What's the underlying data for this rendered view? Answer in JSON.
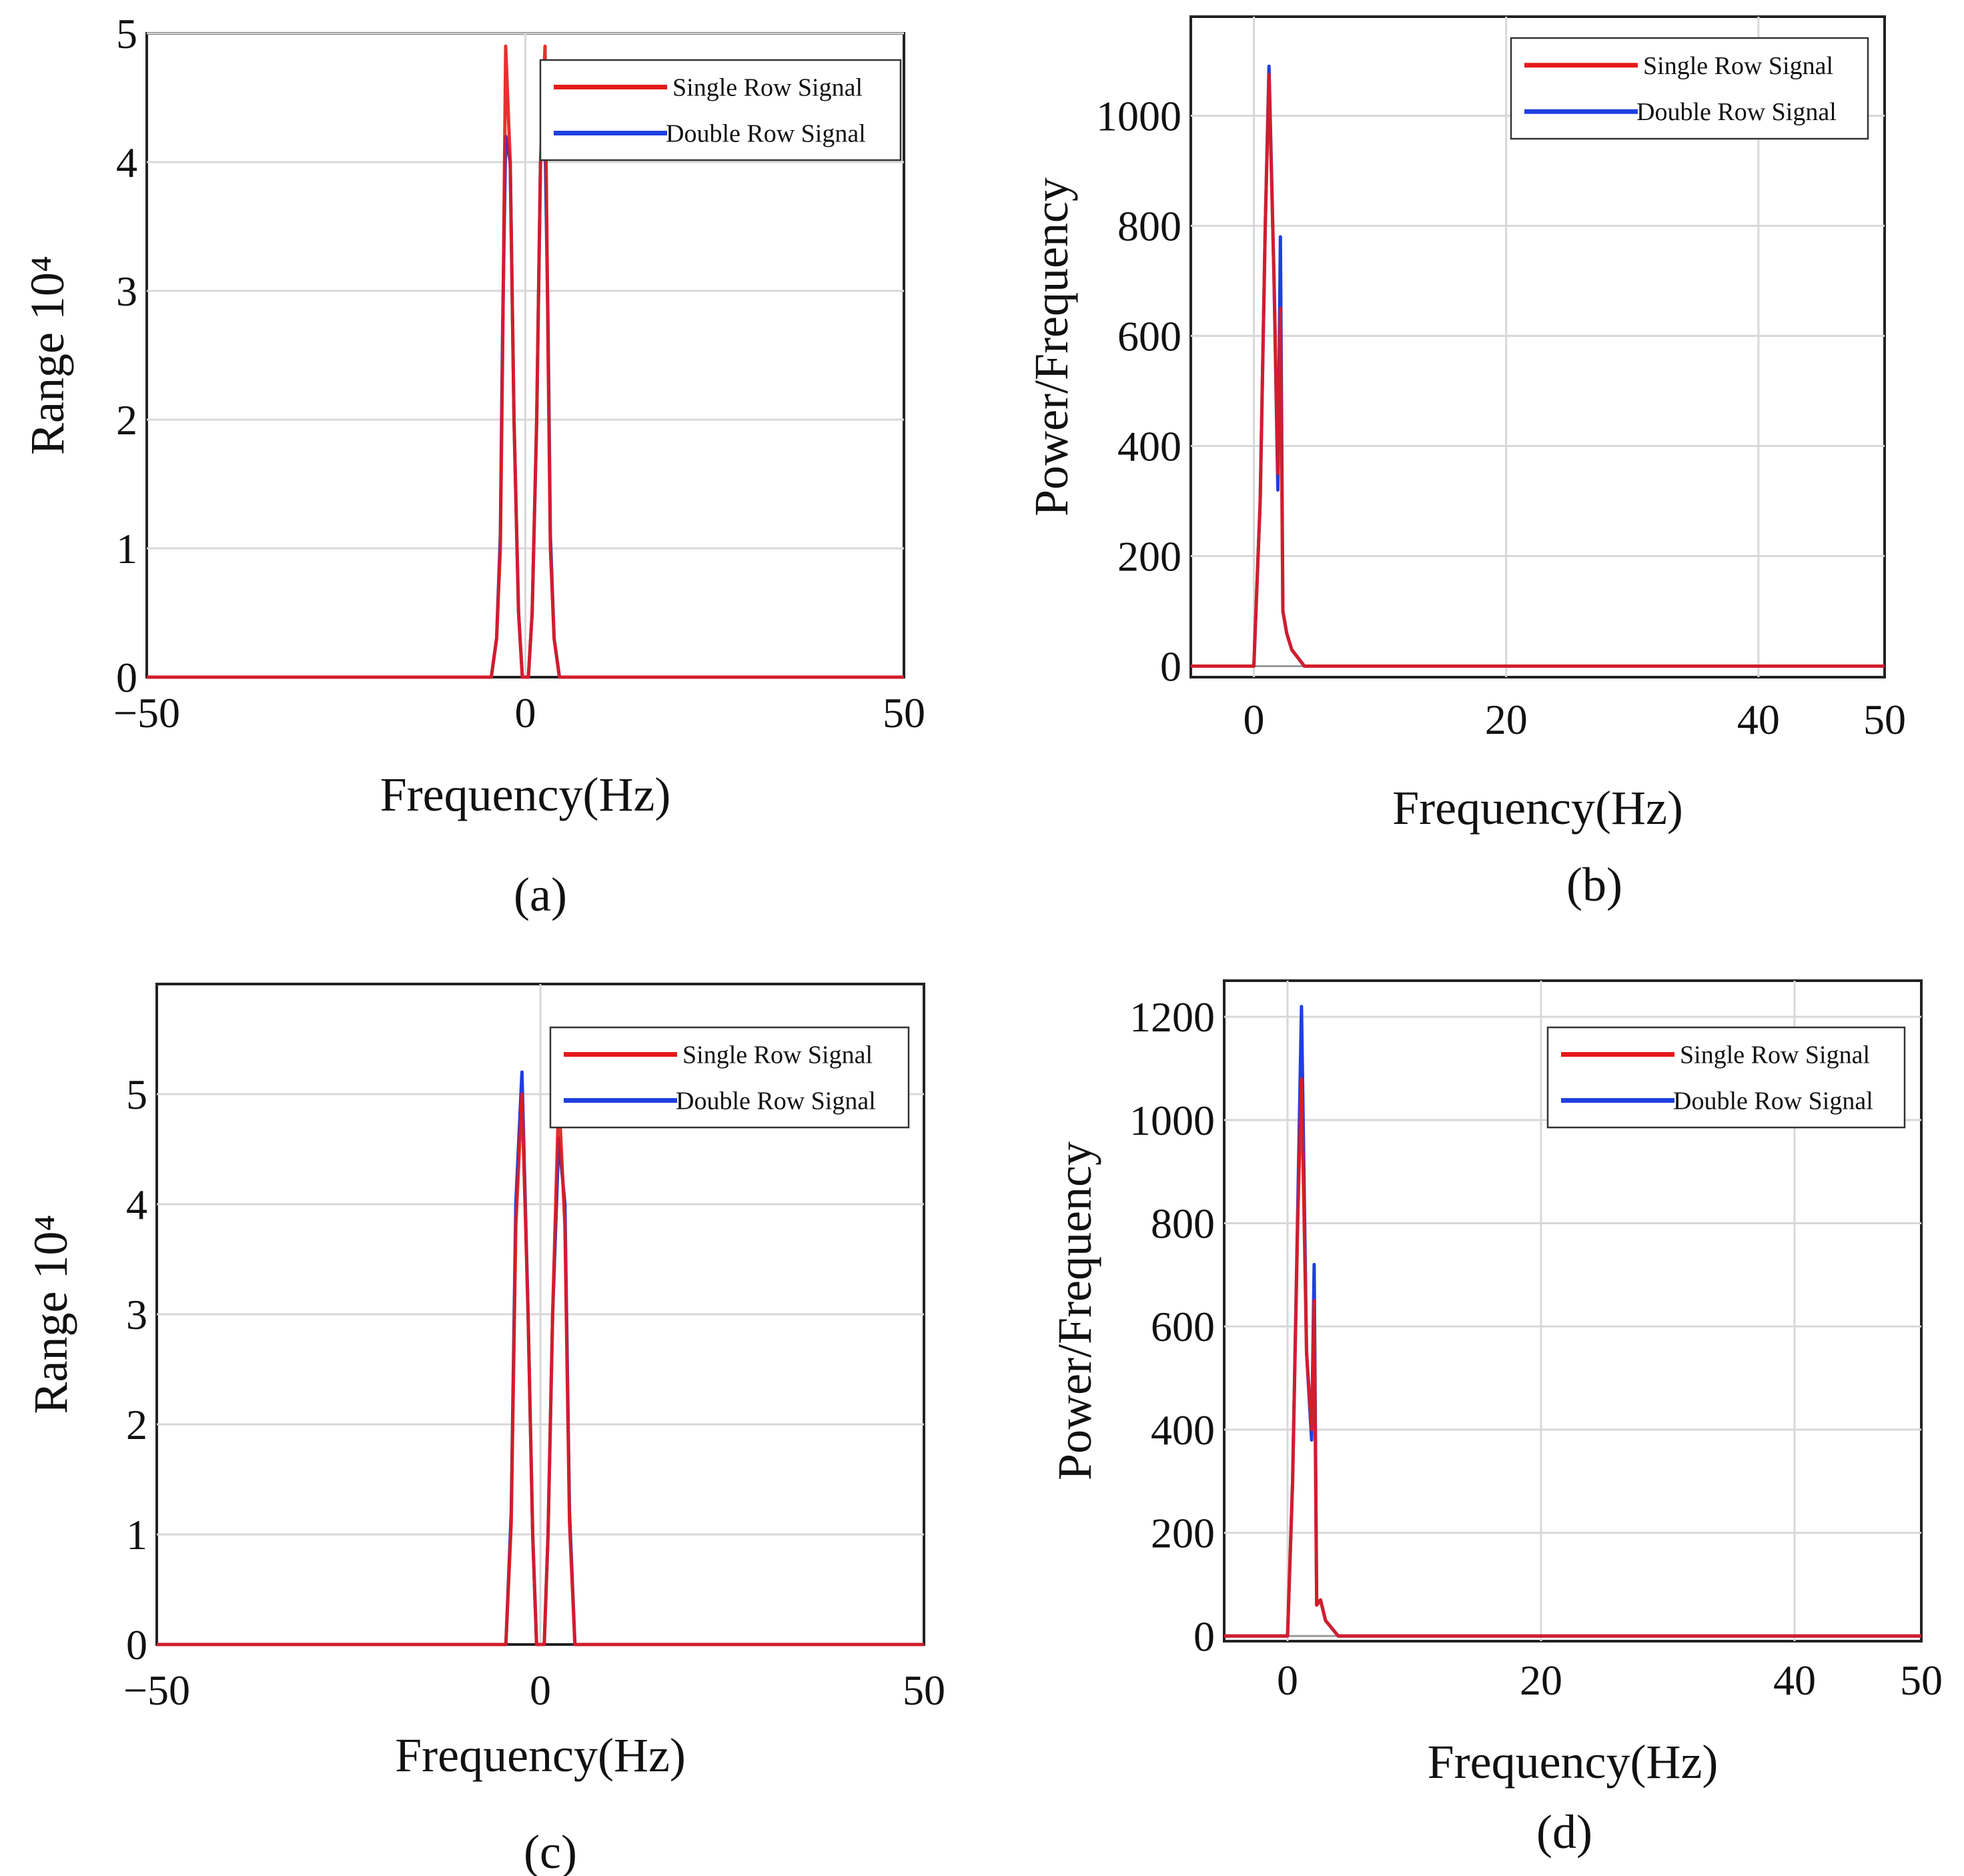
{
  "chart_data": [
    {
      "panel": "a",
      "type": "line",
      "caption": "(a)",
      "xlabel": "Frequency(Hz)",
      "ylabel": "Range 10⁴",
      "xlim": [
        -50,
        50
      ],
      "ylim": [
        0,
        5
      ],
      "xticks": [
        -50,
        0,
        50
      ],
      "yticks": [
        0,
        1,
        2,
        3,
        4,
        5
      ],
      "xtick_labels": [
        "−50",
        "0",
        "50"
      ],
      "ytick_labels": [
        "0",
        "1",
        "2",
        "3",
        "4",
        "5"
      ],
      "legend": {
        "position": "top-right",
        "entries": [
          "Single Row Signal",
          "Double  Row Signal"
        ]
      },
      "series": [
        {
          "name": "Single Row Signal",
          "color": "#e51a1a",
          "x": [
            -50,
            -4.5,
            -3.8,
            -3.3,
            -3.0,
            -2.6,
            -2.0,
            -1.5,
            -0.9,
            -0.4,
            0.4,
            0.9,
            1.5,
            2.0,
            2.6,
            3.0,
            3.3,
            3.8,
            4.5,
            50
          ],
          "y": [
            0,
            0,
            0.3,
            1.0,
            2.5,
            4.9,
            4.0,
            2.0,
            0.5,
            0,
            0,
            0.5,
            2.0,
            4.0,
            4.9,
            2.5,
            1.0,
            0.3,
            0,
            0
          ]
        },
        {
          "name": "Double  Row Signal",
          "color": "#1f3fe0",
          "x": [
            -50,
            -4.5,
            -3.8,
            -3.3,
            -3.0,
            -2.6,
            -2.0,
            -1.5,
            -0.9,
            -0.4,
            0.4,
            0.9,
            1.5,
            2.0,
            2.6,
            3.0,
            3.3,
            3.8,
            4.5,
            50
          ],
          "y": [
            0,
            0,
            0.3,
            1.1,
            2.7,
            4.2,
            4.0,
            2.0,
            0.5,
            0,
            0,
            0.5,
            2.0,
            4.0,
            4.2,
            2.7,
            1.1,
            0.3,
            0,
            0
          ]
        }
      ]
    },
    {
      "panel": "b",
      "type": "line",
      "caption": "(b)",
      "xlabel": "Frequency(Hz)",
      "ylabel": "Power/Frequency",
      "xlim": [
        -5,
        50
      ],
      "ylim": [
        -20,
        1180
      ],
      "xticks": [
        0,
        20,
        40,
        50
      ],
      "yticks": [
        0,
        200,
        400,
        600,
        800,
        1000
      ],
      "xtick_labels": [
        "0",
        "20",
        "40",
        "50"
      ],
      "ytick_labels": [
        "0",
        "200",
        "400",
        "600",
        "800",
        "1000"
      ],
      "legend": {
        "position": "top-right",
        "entries": [
          "Single Row Signal",
          "Double  Row Signal"
        ]
      },
      "series": [
        {
          "name": "Single Row Signal",
          "color": "#e51a1a",
          "x": [
            -5,
            0,
            0.5,
            0.9,
            1.2,
            1.6,
            1.9,
            2.1,
            2.3,
            2.6,
            3.0,
            4.0,
            50
          ],
          "y": [
            0,
            0,
            300,
            800,
            1075,
            700,
            350,
            650,
            100,
            60,
            30,
            0,
            0
          ]
        },
        {
          "name": "Double  Row Signal",
          "color": "#1f3fe0",
          "x": [
            -5,
            0,
            0.5,
            0.9,
            1.2,
            1.6,
            1.9,
            2.1,
            2.3,
            2.6,
            3.0,
            4.0,
            50
          ],
          "y": [
            0,
            0,
            300,
            800,
            1090,
            700,
            320,
            780,
            100,
            60,
            30,
            0,
            0
          ]
        }
      ]
    },
    {
      "panel": "c",
      "type": "line",
      "caption": "(c)",
      "xlabel": "Frequency(Hz)",
      "ylabel": "Range 10⁴",
      "xlim": [
        -50,
        50
      ],
      "ylim": [
        0,
        6
      ],
      "xticks": [
        -50,
        0,
        50
      ],
      "yticks": [
        0,
        1,
        2,
        3,
        4,
        5
      ],
      "xtick_labels": [
        "−50",
        "0",
        "50"
      ],
      "ytick_labels": [
        "0",
        "1",
        "2",
        "3",
        "4",
        "5"
      ],
      "legend": {
        "position": "top-right",
        "entries": [
          "Single Row Signal",
          "Double  Row Signal"
        ]
      },
      "series": [
        {
          "name": "Single Row Signal",
          "color": "#e51a1a",
          "x": [
            -50,
            -4.5,
            -3.8,
            -3.2,
            -2.4,
            -1.6,
            -1.0,
            -0.5,
            0,
            0.5,
            1.0,
            1.6,
            2.4,
            3.2,
            3.8,
            4.5,
            50
          ],
          "y": [
            0,
            0,
            1.1,
            3.8,
            5.0,
            3.0,
            1.0,
            0,
            0,
            0,
            1.0,
            3.0,
            5.0,
            3.8,
            1.1,
            0,
            0
          ]
        },
        {
          "name": "Double  Row Signal",
          "color": "#1f3fe0",
          "x": [
            -50,
            -4.5,
            -3.8,
            -3.2,
            -2.4,
            -1.6,
            -1.0,
            -0.5,
            0,
            0.5,
            1.0,
            1.6,
            2.4,
            3.2,
            3.8,
            4.5,
            50
          ],
          "y": [
            0,
            0,
            1.2,
            4.0,
            5.2,
            3.0,
            1.0,
            0,
            0,
            0,
            1.0,
            3.0,
            4.6,
            4.0,
            1.2,
            0,
            0
          ]
        }
      ]
    },
    {
      "panel": "d",
      "type": "line",
      "caption": "(d)",
      "xlabel": "Frequency(Hz)",
      "ylabel": "Power/Frequency",
      "xlim": [
        -5,
        50
      ],
      "ylim": [
        -10,
        1270
      ],
      "xticks": [
        0,
        20,
        40,
        50
      ],
      "yticks": [
        0,
        200,
        400,
        600,
        800,
        1000,
        1200
      ],
      "xtick_labels": [
        "0",
        "20",
        "40",
        "50"
      ],
      "ytick_labels": [
        "0",
        "200",
        "400",
        "600",
        "800",
        "1000",
        "1200"
      ],
      "legend": {
        "position": "top-right",
        "entries": [
          "Single Row Signal",
          "Double  Row Signal"
        ]
      },
      "series": [
        {
          "name": "Single Row Signal",
          "color": "#e51a1a",
          "x": [
            -5,
            0,
            0.4,
            0.8,
            1.1,
            1.5,
            1.9,
            2.1,
            2.3,
            2.6,
            3.0,
            4.0,
            50
          ],
          "y": [
            0,
            0,
            300,
            800,
            1080,
            550,
            400,
            650,
            60,
            70,
            30,
            0,
            0
          ]
        },
        {
          "name": "Double  Row Signal",
          "color": "#1f3fe0",
          "x": [
            -5,
            0,
            0.4,
            0.8,
            1.1,
            1.5,
            1.9,
            2.1,
            2.3,
            2.6,
            3.0,
            4.0,
            50
          ],
          "y": [
            0,
            0,
            300,
            820,
            1220,
            550,
            380,
            720,
            60,
            70,
            30,
            0,
            0
          ]
        }
      ]
    }
  ]
}
